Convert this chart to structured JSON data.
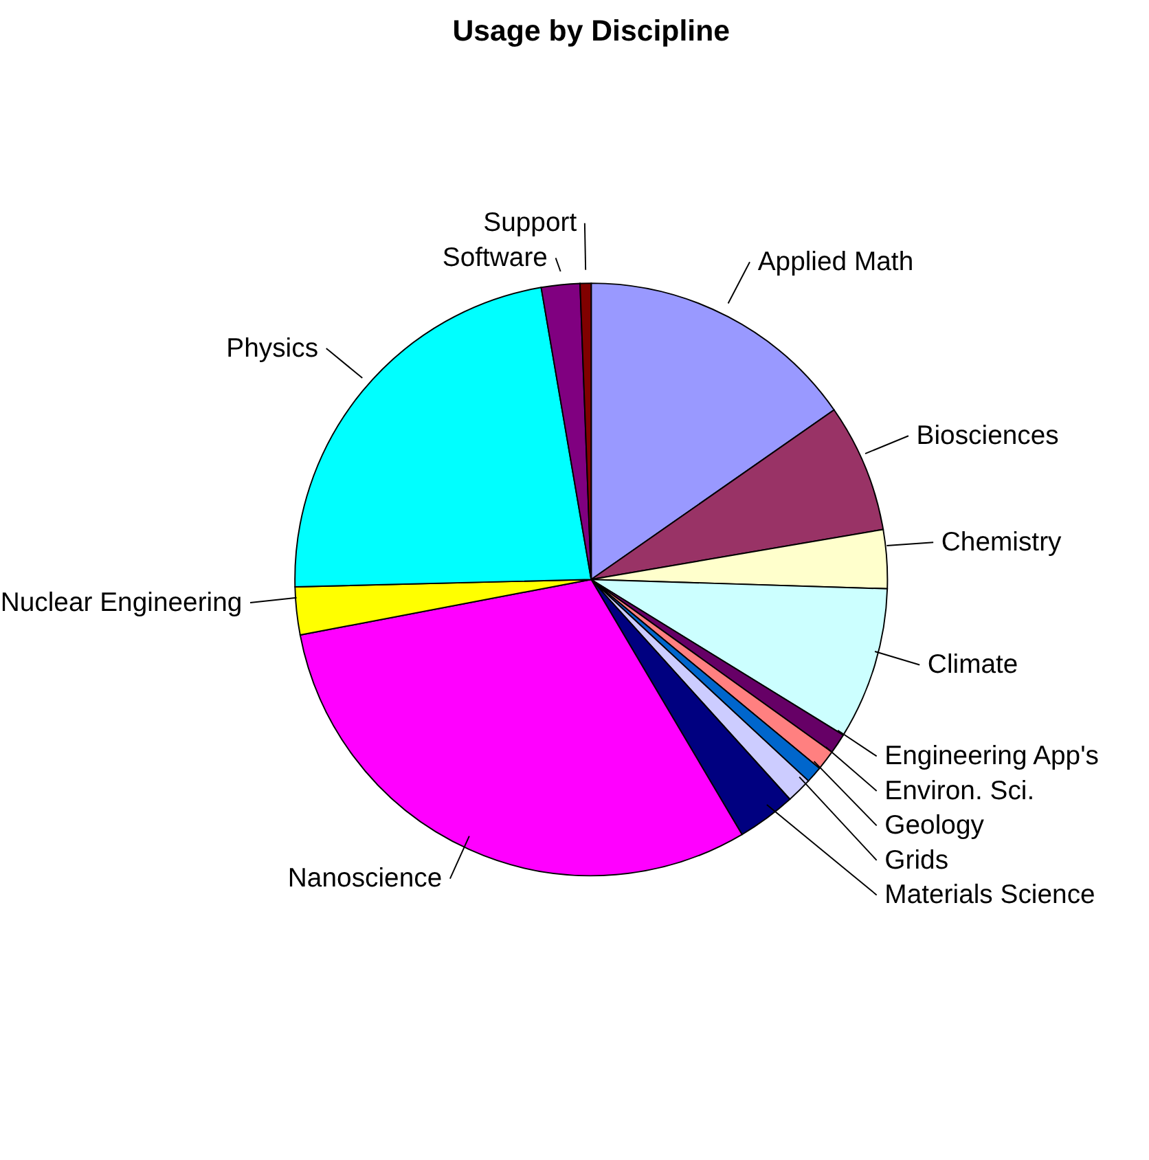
{
  "chart_data": {
    "type": "pie",
    "title": "Usage by Discipline",
    "categories": [
      "Applied Math",
      "Biosciences",
      "Chemistry",
      "Climate",
      "Engineering App's",
      "Environ. Sci.",
      "Geology",
      "Grids",
      "Materials Science",
      "Nanoscience",
      "Nuclear Engineering",
      "Physics",
      "Software",
      "Support"
    ],
    "values": [
      15.3,
      7.0,
      3.2,
      8.3,
      1.1,
      1.1,
      0.9,
      1.4,
      3.2,
      30.5,
      2.6,
      22.7,
      2.1,
      0.6
    ],
    "colors": [
      "#9999ff",
      "#993366",
      "#ffffcc",
      "#ccffff",
      "#660066",
      "#ff8080",
      "#0066cc",
      "#ccccff",
      "#000080",
      "#ff00ff",
      "#ffff00",
      "#00ffff",
      "#800080",
      "#800000"
    ],
    "legend": false
  }
}
